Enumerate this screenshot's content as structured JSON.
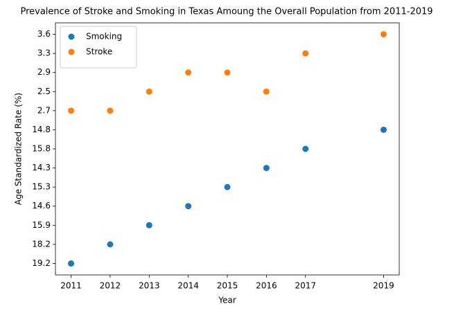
{
  "chart_data": {
    "type": "scatter",
    "title": "Prevalence of Stroke and Smoking in Texas Amoung the Overall Population from 2011-2019",
    "x_label": "Year",
    "y_label": "Age Standardized Rate (%)",
    "xlim": [
      2010.6,
      2019.4
    ],
    "xticks": [
      2011,
      2012,
      2013,
      2014,
      2015,
      2016,
      2017,
      2019
    ],
    "y_categories": [
      19.2,
      18.2,
      15.9,
      14.6,
      15.3,
      14.3,
      15.8,
      14.8,
      2.7,
      2.5,
      2.9,
      3.3,
      3.6
    ],
    "legend": "upper left",
    "series": [
      {
        "name": "Smoking",
        "color": "#1f77b4",
        "x": [
          2011,
          2012,
          2013,
          2014,
          2015,
          2016,
          2017,
          2019
        ],
        "values": [
          19.2,
          18.2,
          15.9,
          14.6,
          15.3,
          14.3,
          15.8,
          14.8
        ]
      },
      {
        "name": "Stroke",
        "color": "#ff7f0e",
        "x": [
          2011,
          2012,
          2013,
          2014,
          2015,
          2016,
          2017,
          2019
        ],
        "values": [
          2.7,
          2.7,
          2.5,
          2.9,
          2.9,
          2.5,
          3.3,
          3.6
        ]
      }
    ]
  }
}
